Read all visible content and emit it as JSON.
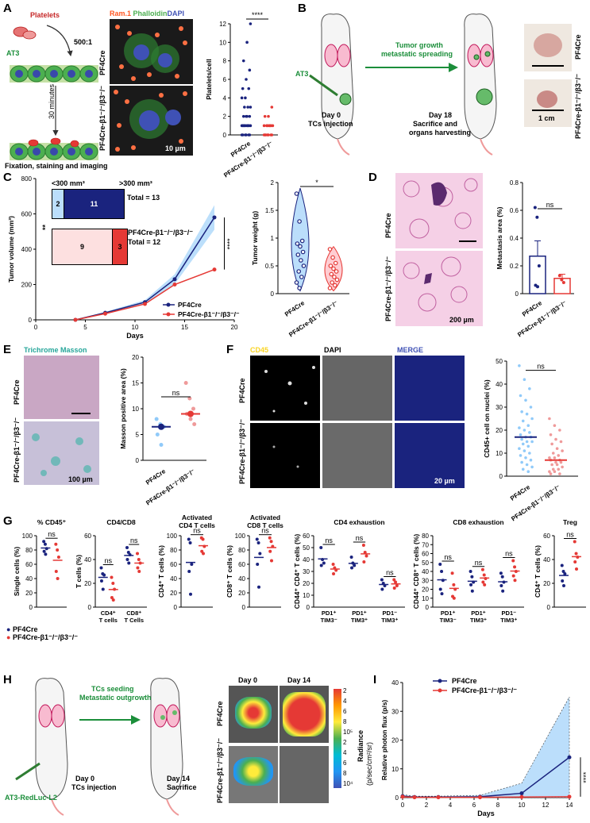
{
  "panels": {
    "A": {
      "label": "A",
      "platelets": "Platelets",
      "ratio": "500:1",
      "cell_line": "AT3",
      "time": "30 minutes",
      "fixation": "Fixation, staining and imaging",
      "stain_ram": "Ram.1",
      "stain_phalloidin": "Phalloidin",
      "stain_dapi": "DAPI",
      "row1": "PF4Cre",
      "row2": "PF4Cre-β1⁻/⁻/β3⁻/⁻",
      "scale": "10 µm",
      "ylabel": "Platelets/cell",
      "sig": "****",
      "x1": "PF4Cre",
      "x2": "PF4Cre-\nβ1⁻/⁻/β3⁻/⁻"
    },
    "B": {
      "label": "B",
      "arrow1": "Tumor growth",
      "arrow2": "metastatic spreading",
      "cell_line": "AT3",
      "day0": "Day 0",
      "day0b": "TCs injection",
      "day18": "Day 18",
      "day18b": "Sacrifice and",
      "day18c": "organs harvesting",
      "row1": "PF4Cre",
      "row2": "PF4Cre-β1⁻/⁻/β3⁻/⁻",
      "scale": "1 cm"
    },
    "C": {
      "label": "C",
      "ylabel": "Tumor volume (mm³)",
      "xlabel": "Days",
      "legend1": "PF4Cre",
      "legend2": "PF4Cre-β1⁻/⁻/β3⁻/⁻",
      "sig": "****",
      "box_lt": "<300 mm³",
      "box_gt": ">300 mm³",
      "box_pf4_small": "2",
      "box_pf4_large": "11",
      "box_pf4_total": "Total = 13",
      "box_ko_small": "9",
      "box_ko_large": "3",
      "box_ko_total": "Total = 12",
      "box_sig": "**",
      "weight_ylabel": "Tumor weight (g)",
      "weight_sig": "*"
    },
    "D": {
      "label": "D",
      "row1": "PF4Cre",
      "row2": "PF4Cre-β1⁻/⁻/β3⁻/⁻",
      "scale": "200 µm",
      "ylabel": "Metastasis area (%)",
      "sig": "ns"
    },
    "E": {
      "label": "E",
      "title": "Trichrome Masson",
      "row1": "PF4Cre",
      "row2": "PF4Cre-β1⁻/⁻/β3⁻/⁻",
      "scale": "100 µm",
      "ylabel": "Masson positive area (%)",
      "sig": "ns"
    },
    "F": {
      "label": "F",
      "col1": "CD45",
      "col2": "DAPI",
      "col3": "MERGE",
      "row1": "PF4Cre",
      "row2": "PF4Cre-β1⁻/⁻/β3⁻/⁻",
      "scale": "20 µm",
      "ylabel": "CD45+ cell on nuclei (%)",
      "sig": "ns"
    },
    "G": {
      "label": "G",
      "legend1": "PF4Cre",
      "legend2": "PF4Cre-β1⁻/⁻/β3⁻/⁻",
      "ns": "ns"
    },
    "H": {
      "label": "H",
      "arrow1": "TCs seeding",
      "arrow2": "Metastatic outgrowth",
      "cell_line": "AT3-RedLuc-L2",
      "day0": "Day 0",
      "day0b": "TCs injection",
      "day14": "Day 14",
      "day14b": "Sacrifice",
      "col1": "Day 0",
      "col2": "Day 14",
      "row1": "PF4Cre",
      "row2": "PF4Cre-β1⁻/⁻/β3⁻/⁻",
      "radiance": "Radiance",
      "radiance_unit": "(p/sec/cm²/sr)",
      "cbar_ticks": [
        "2",
        "4",
        "6",
        "8",
        "10⁵",
        "2",
        "4",
        "6",
        "8",
        "10⁴"
      ]
    },
    "I": {
      "label": "I",
      "legend1": "PF4Cre",
      "legend2": "PF4Cre-β1⁻/⁻/β3⁻/⁻",
      "sig": "****"
    }
  },
  "colors": {
    "pf4": "#1a237e",
    "ko": "#e53935",
    "pf4_light": "#90caf9",
    "ko_light": "#ef9a9a",
    "green": "#1b8e3a"
  },
  "chart_data": [
    {
      "id": "A-platelets",
      "type": "scatter",
      "ylabel": "Platelets/cell",
      "ylim": [
        0,
        12
      ],
      "yticks": [
        0,
        2,
        4,
        6,
        8,
        10,
        12
      ],
      "categories": [
        "PF4Cre",
        "PF4Cre-β1⁻/⁻/β3⁻/⁻"
      ],
      "series": [
        {
          "values": [
            0,
            0,
            0,
            0,
            0,
            0,
            1,
            1,
            1,
            1,
            1,
            1,
            1,
            1,
            1,
            2,
            2,
            2,
            2,
            3,
            3,
            3,
            4,
            4,
            5,
            5,
            6,
            7,
            8,
            10,
            12
          ]
        },
        {
          "values": [
            0,
            0,
            0,
            0,
            0,
            0,
            0,
            1,
            1,
            1,
            1,
            1,
            1,
            1,
            2,
            2,
            3
          ]
        }
      ]
    },
    {
      "id": "C-volume",
      "type": "line",
      "xlabel": "Days",
      "ylabel": "Tumor volume (mm³)",
      "xlim": [
        0,
        20
      ],
      "ylim": [
        0,
        800
      ],
      "xticks": [
        0,
        5,
        10,
        15,
        20
      ],
      "yticks": [
        0,
        200,
        400,
        600,
        800
      ],
      "x": [
        4,
        7,
        11,
        14,
        18
      ],
      "series": [
        {
          "name": "PF4Cre",
          "values": [
            0,
            40,
            100,
            230,
            580
          ]
        },
        {
          "name": "PF4Cre-β1⁻/⁻/β3⁻/⁻",
          "values": [
            0,
            35,
            90,
            200,
            285
          ]
        }
      ]
    },
    {
      "id": "C-weight",
      "type": "scatter",
      "ylabel": "Tumor weight (g)",
      "ylim": [
        0,
        2.0
      ],
      "yticks": [
        0.0,
        0.5,
        1.0,
        1.5,
        2.0
      ],
      "categories": [
        "PF4Cre",
        "PF4Cre-β1⁻/⁻/β3⁻/⁻"
      ],
      "series": [
        {
          "values": [
            1.8,
            1.3,
            0.95,
            0.9,
            0.85,
            0.75,
            0.7,
            0.6,
            0.5,
            0.4,
            0.3,
            0.2,
            0.1
          ]
        },
        {
          "values": [
            0.8,
            0.65,
            0.55,
            0.5,
            0.45,
            0.4,
            0.35,
            0.3,
            0.25,
            0.2,
            0.15,
            0.1
          ]
        }
      ]
    },
    {
      "id": "D-metastasis",
      "type": "bar",
      "ylabel": "Metastasis area (%)",
      "ylim": [
        0,
        0.8
      ],
      "yticks": [
        0.0,
        0.2,
        0.4,
        0.6,
        0.8
      ],
      "categories": [
        "PF4Cre",
        "PF4Cre-β1⁻/⁻/β3⁻/⁻"
      ],
      "values": [
        0.27,
        0.11
      ],
      "errors": [
        0.11,
        0.03
      ],
      "points": [
        [
          0.62,
          0.55,
          0.2,
          0.06,
          0.05
        ],
        [
          0.13,
          0.1,
          0.08
        ]
      ]
    },
    {
      "id": "E-masson",
      "type": "scatter",
      "ylabel": "Masson positive area (%)",
      "ylim": [
        0,
        20
      ],
      "yticks": [
        0,
        5,
        10,
        15,
        20
      ],
      "categories": [
        "PF4Cre",
        "PF4Cre-β1⁻/⁻/β3⁻/⁻"
      ],
      "means": [
        6.5,
        9
      ],
      "series": [
        {
          "values": [
            8,
            7,
            6.5,
            5,
            3
          ]
        },
        {
          "values": [
            15,
            12,
            10,
            9,
            8,
            7
          ]
        }
      ]
    },
    {
      "id": "F-cd45",
      "type": "scatter",
      "ylabel": "CD45+ cell on nuclei (%)",
      "ylim": [
        0,
        50
      ],
      "yticks": [
        0,
        10,
        20,
        30,
        40,
        50
      ],
      "categories": [
        "PF4Cre",
        "PF4Cre-β1⁻/⁻/β3⁻/⁻"
      ],
      "means": [
        17,
        7
      ],
      "series": [
        {
          "values": [
            48,
            42,
            38,
            35,
            33,
            30,
            28,
            27,
            25,
            24,
            22,
            21,
            20,
            19,
            18,
            17,
            17,
            16,
            15,
            15,
            14,
            13,
            12,
            11,
            10,
            9,
            8,
            7,
            6,
            5,
            4,
            3,
            2
          ]
        },
        {
          "values": [
            25,
            22,
            20,
            18,
            16,
            15,
            14,
            12,
            11,
            10,
            9,
            8,
            8,
            7,
            7,
            6,
            6,
            5,
            5,
            4,
            3,
            3,
            2,
            2,
            1,
            1
          ]
        }
      ]
    },
    {
      "id": "G-cd45",
      "type": "scatter",
      "title": "% CD45⁺",
      "ylabel": "Single cells (%)",
      "ylim": [
        0,
        100
      ],
      "yticks": [
        0,
        20,
        40,
        60,
        80,
        100
      ],
      "series": [
        {
          "name": "PF4Cre",
          "values": [
            92,
            88,
            82,
            78,
            74
          ]
        },
        {
          "name": "PF4Cre-β1⁻/⁻/β3⁻/⁻",
          "values": [
            88,
            80,
            70,
            50,
            40
          ]
        }
      ]
    },
    {
      "id": "G-cd4cd8",
      "type": "scatter",
      "title": "CD4/CD8",
      "ylabel": "T cells (%)",
      "ylim": [
        0,
        60
      ],
      "yticks": [
        0,
        20,
        40,
        60
      ],
      "categories": [
        "CD4⁺\nT cells",
        "CD8⁺\nT Cells"
      ],
      "series": [
        {
          "name": "PF4Cre",
          "values": [
            [
              33,
              28,
              27,
              22,
              15
            ],
            [
              50,
              46,
              44,
              40,
              37
            ]
          ]
        },
        {
          "name": "PF4Cre-β1⁻/⁻/β3⁻/⁻",
          "values": [
            [
              25,
              20,
              15,
              8,
              6
            ],
            [
              45,
              40,
              37,
              33,
              30
            ]
          ]
        }
      ]
    },
    {
      "id": "G-cd4act",
      "type": "scatter",
      "title": "Activated\nCD4 T cells",
      "ylabel": "CD4⁺ T cells (%)",
      "ylim": [
        0,
        100
      ],
      "yticks": [
        0,
        20,
        40,
        60,
        80,
        100
      ],
      "series": [
        {
          "name": "PF4Cre",
          "values": [
            95,
            90,
            60,
            50,
            18
          ]
        },
        {
          "name": "PF4Cre-β1⁻/⁻/β3⁻/⁻",
          "values": [
            97,
            95,
            85,
            78,
            75
          ]
        }
      ]
    },
    {
      "id": "G-cd8act",
      "type": "scatter",
      "title": "Activated\nCD8 T cells",
      "ylabel": "CD8⁺ T cells (%)",
      "ylim": [
        0,
        100
      ],
      "yticks": [
        0,
        20,
        40,
        60,
        80,
        100
      ],
      "series": [
        {
          "name": "PF4Cre",
          "values": [
            95,
            90,
            75,
            60,
            28
          ]
        },
        {
          "name": "PF4Cre-β1⁻/⁻/β3⁻/⁻",
          "values": [
            97,
            92,
            85,
            78,
            65
          ]
        }
      ]
    },
    {
      "id": "G-cd4exh",
      "type": "scatter",
      "title": "CD4 exhaustion",
      "ylabel": "CD44⁺ CD4⁺ T cells (%)",
      "ylim": [
        0,
        60
      ],
      "yticks": [
        0,
        10,
        20,
        30,
        40,
        50,
        60
      ],
      "categories": [
        "PD1⁺\nTIM3⁻",
        "PD1⁺\nTIM3⁺",
        "PD1⁻\nTIM3⁺"
      ],
      "series": [
        {
          "name": "PF4Cre",
          "values": [
            [
              50,
              40,
              37,
              35
            ],
            [
              42,
              37,
              35,
              33
            ],
            [
              23,
              20,
              18,
              15
            ]
          ]
        },
        {
          "name": "PF4Cre-β1⁻/⁻/β3⁻/⁻",
          "values": [
            [
              36,
              33,
              31,
              28
            ],
            [
              52,
              46,
              43,
              38
            ],
            [
              23,
              21,
              18,
              16
            ]
          ]
        }
      ]
    },
    {
      "id": "G-cd8exh",
      "type": "scatter",
      "title": "CD8 exhaustion",
      "ylabel": "CD44⁺ CD8⁺ T cells (%)",
      "ylim": [
        0,
        80
      ],
      "yticks": [
        0,
        10,
        20,
        30,
        40,
        50,
        60,
        70,
        80
      ],
      "categories": [
        "PD1⁺\nTIM3⁻",
        "PD1⁺\nTIM3⁺",
        "PD1⁻\nTIM3⁺"
      ],
      "series": [
        {
          "name": "PF4Cre",
          "values": [
            [
              48,
              40,
              30,
              20,
              15
            ],
            [
              40,
              34,
              28,
              25,
              18
            ],
            [
              38,
              34,
              28,
              24,
              18
            ]
          ]
        },
        {
          "name": "PF4Cre-β1⁻/⁻/β3⁻/⁻",
          "values": [
            [
              38,
              25,
              20,
              12,
              10
            ],
            [
              42,
              36,
              32,
              28,
              25
            ],
            [
              52,
              45,
              40,
              35,
              30
            ]
          ]
        }
      ]
    },
    {
      "id": "G-treg",
      "type": "scatter",
      "title": "Treg",
      "ylabel": "CD4⁺ T cells (%)",
      "ylim": [
        0,
        60
      ],
      "yticks": [
        0,
        20,
        40,
        60
      ],
      "series": [
        {
          "name": "PF4Cre",
          "values": [
            35,
            30,
            28,
            22,
            18
          ]
        },
        {
          "name": "PF4Cre-β1⁻/⁻/β3⁻/⁻",
          "values": [
            55,
            45,
            42,
            38,
            32
          ]
        }
      ]
    },
    {
      "id": "I-photon",
      "type": "line",
      "xlabel": "Days",
      "ylabel": "Relative photon flux (p/s)",
      "xlim": [
        0,
        14
      ],
      "ylim": [
        0,
        40
      ],
      "xticks": [
        0,
        2,
        4,
        6,
        8,
        10,
        12,
        14
      ],
      "yticks": [
        0,
        10,
        20,
        30,
        40
      ],
      "x": [
        0,
        1,
        3,
        6.5,
        10,
        14
      ],
      "series": [
        {
          "name": "PF4Cre",
          "values": [
            0.5,
            0.2,
            0.2,
            0.3,
            1.5,
            14
          ]
        },
        {
          "name": "PF4Cre-β1⁻/⁻/β3⁻/⁻",
          "values": [
            0.3,
            0.1,
            0.1,
            0.1,
            0.2,
            0.3
          ]
        }
      ]
    }
  ]
}
